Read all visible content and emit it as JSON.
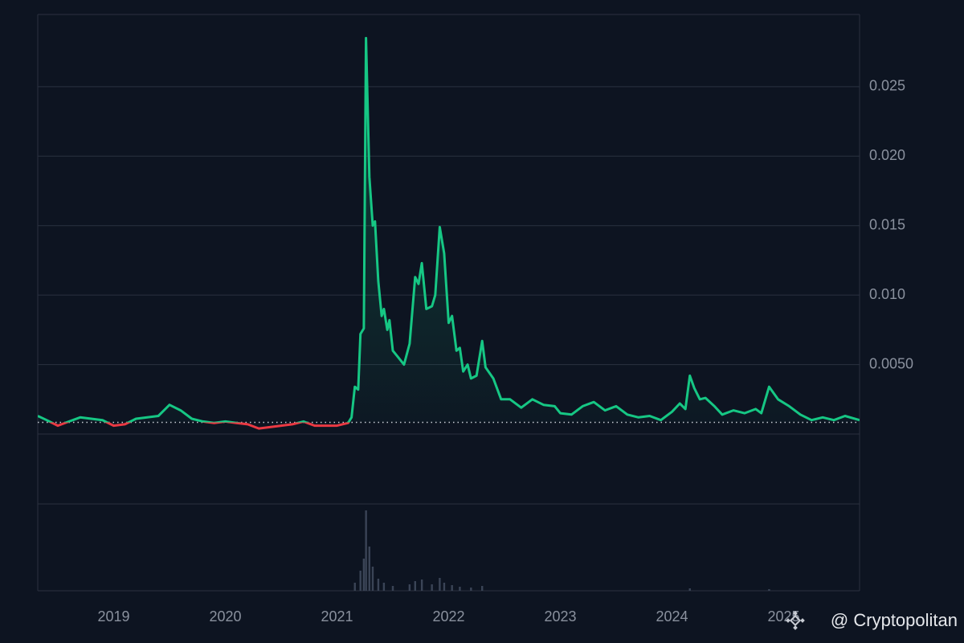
{
  "chart_data": {
    "type": "line",
    "xlim": [
      2018.32,
      2025.68
    ],
    "xticks": [
      2019,
      2020,
      2021,
      2022,
      2023,
      2024,
      2025
    ],
    "ylim": [
      0,
      0.0302
    ],
    "yticks": [
      {
        "value": 0.025,
        "label": "0.025"
      },
      {
        "value": 0.02,
        "label": "0.020"
      },
      {
        "value": 0.015,
        "label": "0.015"
      },
      {
        "value": 0.01,
        "label": "0.010"
      },
      {
        "value": 0.005,
        "label": "0.0050"
      }
    ],
    "grid": true,
    "baseline": 0.00084,
    "up_color": "#16c784",
    "down_color": "#ea3943",
    "x": [
      2018.32,
      2018.4,
      2018.5,
      2018.6,
      2018.7,
      2018.8,
      2018.9,
      2019.0,
      2019.1,
      2019.2,
      2019.3,
      2019.4,
      2019.5,
      2019.6,
      2019.7,
      2019.8,
      2019.9,
      2020.0,
      2020.1,
      2020.2,
      2020.3,
      2020.4,
      2020.5,
      2020.6,
      2020.7,
      2020.8,
      2020.9,
      2021.0,
      2021.1,
      2021.13,
      2021.16,
      2021.19,
      2021.21,
      2021.24,
      2021.26,
      2021.29,
      2021.32,
      2021.34,
      2021.37,
      2021.4,
      2021.42,
      2021.45,
      2021.47,
      2021.5,
      2021.55,
      2021.6,
      2021.65,
      2021.7,
      2021.73,
      2021.76,
      2021.8,
      2021.85,
      2021.88,
      2021.92,
      2021.96,
      2022.0,
      2022.03,
      2022.07,
      2022.1,
      2022.13,
      2022.17,
      2022.2,
      2022.25,
      2022.3,
      2022.33,
      2022.4,
      2022.47,
      2022.55,
      2022.65,
      2022.75,
      2022.85,
      2022.95,
      2023.0,
      2023.1,
      2023.2,
      2023.3,
      2023.4,
      2023.5,
      2023.6,
      2023.7,
      2023.8,
      2023.9,
      2024.0,
      2024.07,
      2024.12,
      2024.16,
      2024.2,
      2024.25,
      2024.3,
      2024.38,
      2024.45,
      2024.55,
      2024.65,
      2024.75,
      2024.8,
      2024.87,
      2024.95,
      2025.05,
      2025.15,
      2025.25,
      2025.35,
      2025.45,
      2025.55,
      2025.68
    ],
    "values": [
      0.0013,
      0.001,
      0.0006,
      0.0009,
      0.0012,
      0.0011,
      0.001,
      0.0006,
      0.0007,
      0.0011,
      0.0012,
      0.0013,
      0.0021,
      0.0017,
      0.0011,
      0.0009,
      0.0008,
      0.0009,
      0.0008,
      0.0007,
      0.0004,
      0.0005,
      0.0006,
      0.0007,
      0.0009,
      0.0006,
      0.0006,
      0.0006,
      0.0008,
      0.0012,
      0.0034,
      0.0032,
      0.0072,
      0.0076,
      0.0285,
      0.0185,
      0.015,
      0.0153,
      0.011,
      0.0085,
      0.009,
      0.0075,
      0.0082,
      0.006,
      0.0055,
      0.005,
      0.0065,
      0.0113,
      0.0108,
      0.0123,
      0.009,
      0.0092,
      0.01,
      0.0149,
      0.013,
      0.008,
      0.0085,
      0.006,
      0.0062,
      0.0045,
      0.005,
      0.004,
      0.0042,
      0.0067,
      0.0048,
      0.004,
      0.0025,
      0.0025,
      0.0019,
      0.0025,
      0.0021,
      0.002,
      0.0015,
      0.0014,
      0.002,
      0.0023,
      0.0017,
      0.002,
      0.0014,
      0.0012,
      0.0013,
      0.001,
      0.0016,
      0.0022,
      0.0018,
      0.0042,
      0.0033,
      0.0025,
      0.0026,
      0.002,
      0.0014,
      0.0017,
      0.0015,
      0.0018,
      0.0015,
      0.0034,
      0.0025,
      0.002,
      0.0014,
      0.001,
      0.0012,
      0.001,
      0.0013,
      0.001
    ],
    "volume": {
      "color": "#3a4456",
      "ylim": [
        0,
        108
      ],
      "x": [
        2021.16,
        2021.21,
        2021.24,
        2021.26,
        2021.29,
        2021.32,
        2021.37,
        2021.42,
        2021.5,
        2021.65,
        2021.7,
        2021.76,
        2021.85,
        2021.92,
        2021.96,
        2022.03,
        2022.1,
        2022.2,
        2022.3,
        2024.16,
        2024.87
      ],
      "values": [
        10,
        25,
        40,
        100,
        55,
        30,
        15,
        10,
        6,
        8,
        12,
        14,
        8,
        16,
        10,
        7,
        5,
        4,
        6,
        3,
        2
      ]
    },
    "watermark": "@ Cryptopolitan"
  }
}
